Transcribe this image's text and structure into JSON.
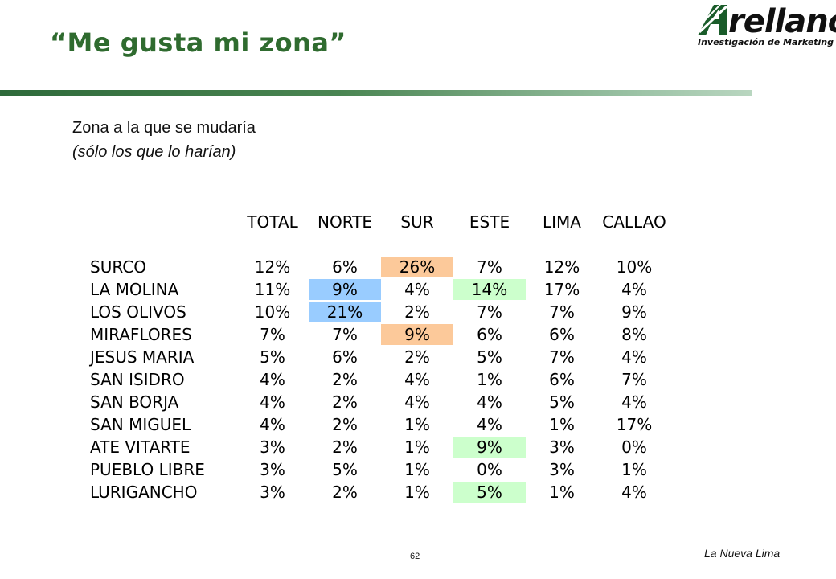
{
  "slide": {
    "title": "“Me gusta mi zona”",
    "subtitle": "Zona a la que se mudaría",
    "subtitle_note": "(sólo los que lo harían)",
    "page_number": "62",
    "footer_label": "La Nueva Lima"
  },
  "logo": {
    "word": "rellano",
    "tagline": "Investigación de Marketing",
    "brand_color": "#1a5c2a"
  },
  "table": {
    "columns": [
      "TOTAL",
      "NORTE",
      "SUR",
      "ESTE",
      "LIMA",
      "CALLAO"
    ],
    "highlight_colors": {
      "orange": "#fcc99a",
      "blue": "#99ccff",
      "green": "#ccffcc"
    },
    "rows": [
      {
        "label": "SURCO",
        "values": [
          "12%",
          "6%",
          "26%",
          "7%",
          "12%",
          "10%"
        ],
        "highlight": [
          null,
          null,
          "orange",
          null,
          null,
          null
        ]
      },
      {
        "label": "LA MOLINA",
        "values": [
          "11%",
          "9%",
          "4%",
          "14%",
          "17%",
          "4%"
        ],
        "highlight": [
          null,
          "blue",
          null,
          "green",
          null,
          null
        ]
      },
      {
        "label": "LOS OLIVOS",
        "values": [
          "10%",
          "21%",
          "2%",
          "7%",
          "7%",
          "9%"
        ],
        "highlight": [
          null,
          "blue",
          null,
          null,
          null,
          null
        ]
      },
      {
        "label": "MIRAFLORES",
        "values": [
          "7%",
          "7%",
          "9%",
          "6%",
          "6%",
          "8%"
        ],
        "highlight": [
          null,
          null,
          "orange",
          null,
          null,
          null
        ]
      },
      {
        "label": "JESUS MARIA",
        "values": [
          "5%",
          "6%",
          "2%",
          "5%",
          "7%",
          "4%"
        ],
        "highlight": [
          null,
          null,
          null,
          null,
          null,
          null
        ]
      },
      {
        "label": "SAN ISIDRO",
        "values": [
          "4%",
          "2%",
          "4%",
          "1%",
          "6%",
          "7%"
        ],
        "highlight": [
          null,
          null,
          null,
          null,
          null,
          null
        ]
      },
      {
        "label": "SAN BORJA",
        "values": [
          "4%",
          "2%",
          "4%",
          "4%",
          "5%",
          "4%"
        ],
        "highlight": [
          null,
          null,
          null,
          null,
          null,
          null
        ]
      },
      {
        "label": "SAN MIGUEL",
        "values": [
          "4%",
          "2%",
          "1%",
          "4%",
          "1%",
          "17%"
        ],
        "highlight": [
          null,
          null,
          null,
          null,
          null,
          null
        ]
      },
      {
        "label": "ATE VITARTE",
        "values": [
          "3%",
          "2%",
          "1%",
          "9%",
          "3%",
          "0%"
        ],
        "highlight": [
          null,
          null,
          null,
          "green",
          null,
          null
        ]
      },
      {
        "label": "PUEBLO LIBRE",
        "values": [
          "3%",
          "5%",
          "1%",
          "0%",
          "3%",
          "1%"
        ],
        "highlight": [
          null,
          null,
          null,
          null,
          null,
          null
        ]
      },
      {
        "label": "LURIGANCHO",
        "values": [
          "3%",
          "2%",
          "1%",
          "5%",
          "1%",
          "4%"
        ],
        "highlight": [
          null,
          null,
          null,
          "green",
          null,
          null
        ]
      }
    ]
  }
}
